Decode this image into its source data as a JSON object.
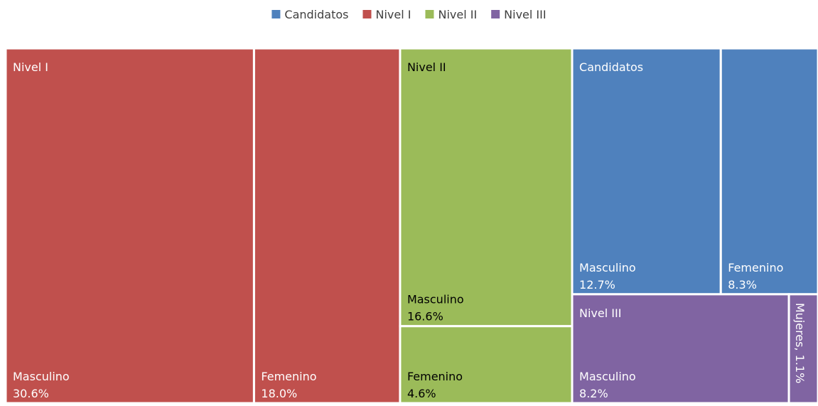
{
  "chart_data": {
    "type": "treemap",
    "groups": [
      {
        "name": "Candidatos",
        "color": "#4f81bd",
        "text_color": "#ffffff",
        "children": [
          {
            "name": "Masculino",
            "value": 12.7,
            "value_label": "12.7%"
          },
          {
            "name": "Femenino",
            "value": 8.3,
            "value_label": "8.3%"
          }
        ]
      },
      {
        "name": "Nivel I",
        "color": "#c0504d",
        "text_color": "#ffffff",
        "children": [
          {
            "name": "Masculino",
            "value": 30.6,
            "value_label": "30.6%"
          },
          {
            "name": "Femenino",
            "value": 18.0,
            "value_label": "18.0%"
          }
        ]
      },
      {
        "name": "Nivel II",
        "color": "#9bbb59",
        "text_color": "#000000",
        "children": [
          {
            "name": "Masculino",
            "value": 16.6,
            "value_label": "16.6%"
          },
          {
            "name": "Femenino",
            "value": 4.6,
            "value_label": "4.6%"
          }
        ]
      },
      {
        "name": "Nivel III",
        "color": "#8064a2",
        "text_color": "#ffffff",
        "children": [
          {
            "name": "Masculino",
            "value": 8.2,
            "value_label": "8.2%"
          },
          {
            "name": "Mujeres",
            "value": 1.1,
            "value_label": "1.1%"
          }
        ]
      }
    ],
    "legend": "top"
  }
}
